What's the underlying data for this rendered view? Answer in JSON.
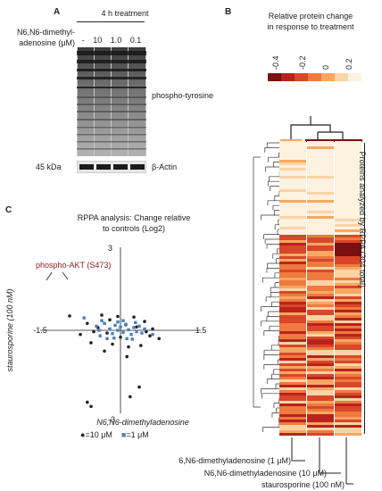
{
  "panels": {
    "A": {
      "label": "A",
      "treatment_header": "4 h treatment",
      "compound_line1": "N6,N6-dimethyl-",
      "compound_line2": "adenosine (μM)",
      "doses": [
        "-",
        "10",
        "1.0",
        "0.1"
      ],
      "blot1_label": "phospho-tyrosine",
      "blot2_marker": "45 kDa",
      "blot2_label": "β-Actin"
    },
    "B": {
      "label": "B",
      "title_line1": "Relative protein change",
      "title_line2": "in response to treatment",
      "scale_ticks": [
        "-0.4",
        "-0.2",
        "0",
        "0.2"
      ],
      "scale_colors": [
        "#7b1010",
        "#b8231b",
        "#d9462a",
        "#ef7a3e",
        "#f6a862",
        "#fbd4a6",
        "#fdf1df"
      ],
      "side_label": "Proteins analyzed by RPPA (304 total)",
      "columns": [
        "N6,N6-dimethyladenosine (1 μM)",
        "N6,N6-dimethyladenosine (10 μM)",
        "staurosporine (100 nM)"
      ]
    },
    "C": {
      "label": "C",
      "title_line1": "RPPA analysis: Change relative",
      "title_line2": "to controls (Log2)",
      "annotation": "phospho-AKT (S473)",
      "y_axis_label": "staurosporine (100 nM)",
      "x_axis_label": "N6,N6-dimethyladenosine",
      "legend": [
        {
          "marker": "●",
          "text": "=10 μM",
          "color": "#222222"
        },
        {
          "marker": "■",
          "text": "=1 μM",
          "color": "#4a7fc0"
        }
      ]
    }
  },
  "chart_data": {
    "type": "scatter",
    "title": "RPPA analysis: Change relative to controls (Log2)",
    "xlabel": "N6,N6-dimethyladenosine",
    "ylabel": "staurosporine (100 nM)",
    "xlim": [
      -1.5,
      1.5
    ],
    "ylim": [
      -3,
      3
    ],
    "x_ticks": [
      "-1.5",
      "1.5"
    ],
    "y_ticks": [
      "3",
      "-3"
    ],
    "series": [
      {
        "name": "=10 μM",
        "color": "#222222",
        "marker": "circle",
        "points": [
          [
            -0.95,
            0.52
          ],
          [
            -0.62,
            0.25
          ],
          [
            -0.55,
            -0.45
          ],
          [
            -0.35,
            0.55
          ],
          [
            -0.3,
            -0.75
          ],
          [
            -0.42,
            0.1
          ],
          [
            -0.2,
            0.38
          ],
          [
            0.25,
            0.48
          ],
          [
            0.45,
            0.32
          ],
          [
            0.55,
            -0.2
          ],
          [
            0.72,
            -0.3
          ],
          [
            0.6,
            0.05
          ],
          [
            0.38,
            -0.55
          ],
          [
            0.15,
            -0.6
          ],
          [
            -0.15,
            -0.5
          ],
          [
            -0.05,
            0.5
          ],
          [
            0.3,
            0.12
          ],
          [
            -0.25,
            -0.1
          ],
          [
            0.1,
            0.2
          ],
          [
            0.0,
            -0.25
          ],
          [
            0.48,
            -0.05
          ],
          [
            -0.5,
            -0.05
          ],
          [
            -0.62,
            -2.6
          ],
          [
            -0.55,
            -2.75
          ],
          [
            0.18,
            -2.4
          ],
          [
            0.35,
            -2.05
          ],
          [
            0.12,
            -0.95
          ],
          [
            -0.75,
            -0.15
          ]
        ]
      },
      {
        "name": "=1 μM",
        "color": "#4a7fc0",
        "marker": "square",
        "points": [
          [
            -0.68,
            0.45
          ],
          [
            -0.45,
            0.15
          ],
          [
            -0.38,
            -0.2
          ],
          [
            -0.3,
            0.25
          ],
          [
            -0.2,
            0.05
          ],
          [
            -0.15,
            -0.12
          ],
          [
            -0.1,
            0.18
          ],
          [
            -0.05,
            0.0
          ],
          [
            0.0,
            0.12
          ],
          [
            0.05,
            -0.08
          ],
          [
            0.1,
            0.22
          ],
          [
            0.15,
            0.02
          ],
          [
            0.2,
            -0.15
          ],
          [
            0.25,
            0.1
          ],
          [
            0.3,
            -0.05
          ],
          [
            0.35,
            0.15
          ],
          [
            0.4,
            -0.1
          ],
          [
            -0.25,
            -0.3
          ],
          [
            0.12,
            -0.3
          ],
          [
            -0.05,
            0.3
          ],
          [
            0.28,
            0.28
          ],
          [
            0.45,
            0.05
          ],
          [
            -0.35,
            0.35
          ],
          [
            0.6,
            -0.15
          ],
          [
            0.05,
            0.35
          ],
          [
            -0.12,
            -0.28
          ],
          [
            0.22,
            -0.32
          ],
          [
            -0.4,
            0.0
          ]
        ]
      }
    ]
  }
}
